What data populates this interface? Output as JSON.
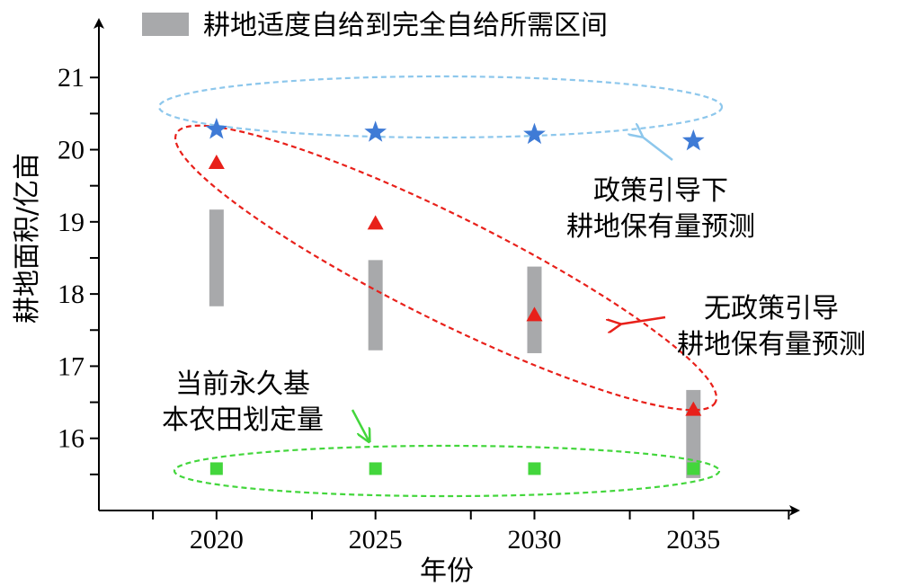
{
  "chart_data": {
    "type": "scatter",
    "xlabel": "年份",
    "ylabel": "耕地面积/亿亩",
    "x_ticks": [
      "2020",
      "2025",
      "2030",
      "2035"
    ],
    "y_ticks": [
      "16",
      "17",
      "18",
      "19",
      "20",
      "21"
    ],
    "xlim": [
      2016.3,
      2038.3
    ],
    "ylim": [
      15.0,
      21.8
    ],
    "legend": {
      "label": "耕地适度自给到完全自给所需区间",
      "position": "top",
      "color": "#a8a9ab"
    },
    "intervals": {
      "name": "耕地适度自给到完全自给所需区间",
      "color": "#a8a9ab",
      "ranges": [
        {
          "x": 2020,
          "low": 17.83,
          "high": 19.17
        },
        {
          "x": 2025,
          "low": 17.22,
          "high": 18.47
        },
        {
          "x": 2030,
          "low": 17.18,
          "high": 18.38
        },
        {
          "x": 2035,
          "low": 15.45,
          "high": 16.67
        }
      ]
    },
    "series": [
      {
        "marker": "star",
        "color": "#3f7bd6",
        "x": [
          2020,
          2025,
          2030,
          2035
        ],
        "y": [
          20.28,
          20.24,
          20.21,
          20.12
        ]
      },
      {
        "marker": "triangle",
        "color": "#e8201a",
        "x": [
          2020,
          2025,
          2030,
          2035
        ],
        "y": [
          19.82,
          18.98,
          17.71,
          16.4
        ]
      },
      {
        "marker": "square",
        "color": "#43d63c",
        "x": [
          2020,
          2025,
          2030,
          2035
        ],
        "y": [
          15.58,
          15.58,
          15.58,
          15.58
        ]
      }
    ],
    "annotations": [
      {
        "key": "policy",
        "lines": [
          "政策引导下",
          "耕地保有量预测"
        ],
        "color": "#8dc7ec"
      },
      {
        "key": "nopolicy",
        "lines": [
          "无政策引导",
          "耕地保有量预测"
        ],
        "color": "#e8201a"
      },
      {
        "key": "basic",
        "lines": [
          "当前永久基",
          "本农田划定量"
        ],
        "color": "#43d63c"
      }
    ]
  }
}
